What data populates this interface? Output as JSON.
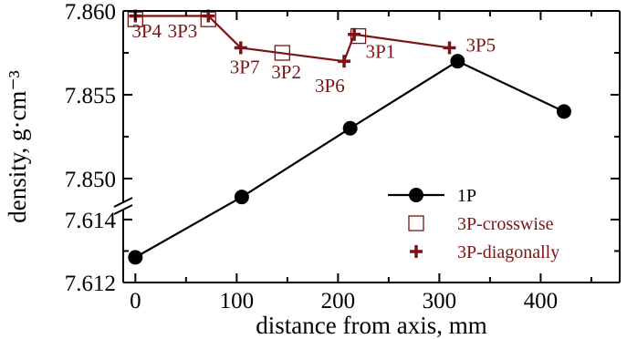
{
  "chart_data": {
    "type": "scatter",
    "title": "",
    "xlabel": "distance from axis, mm",
    "ylabel": "density, g·cm⁻³",
    "xlim": [
      -12,
      478
    ],
    "x_ticks": [
      "0",
      "100",
      "200",
      "300",
      "400"
    ],
    "x_tick_values": [
      0,
      100,
      200,
      300,
      400
    ],
    "y_axis_break": true,
    "y_upper_range": [
      7.8488,
      7.86
    ],
    "y_upper_ticks": [
      "7.860",
      "7.855",
      "7.850"
    ],
    "y_upper_tick_values": [
      7.86,
      7.855,
      7.85
    ],
    "y_lower_range": [
      7.612,
      7.6142
    ],
    "y_lower_ticks": [
      "7.614",
      "7.612"
    ],
    "y_lower_tick_values": [
      7.614,
      7.612
    ],
    "grid": false,
    "legend_position": "bottom-right",
    "series": [
      {
        "name": "1P",
        "marker": "filled-circle",
        "connected": true,
        "color": "#000000",
        "points": [
          {
            "x": 0,
            "y": 7.6128,
            "panel": "lower"
          },
          {
            "x": 105,
            "y": 7.8489,
            "panel": "upper"
          },
          {
            "x": 212,
            "y": 7.853,
            "panel": "upper"
          },
          {
            "x": 318,
            "y": 7.857,
            "panel": "upper"
          },
          {
            "x": 423,
            "y": 7.854,
            "panel": "upper"
          }
        ]
      },
      {
        "name": "3P-crosswise",
        "marker": "open-square",
        "connected": false,
        "color": "#7b1414",
        "points": [
          {
            "x": 0,
            "y": 7.8595,
            "label": "3P4"
          },
          {
            "x": 72,
            "y": 7.8595,
            "label": "3P3"
          },
          {
            "x": 145,
            "y": 7.8575,
            "label": "3P2"
          },
          {
            "x": 220,
            "y": 7.8585,
            "label": "3P1"
          }
        ]
      },
      {
        "name": "3P-diagonally",
        "marker": "plus",
        "connected": true,
        "color": "#7b1414",
        "points": [
          {
            "x": 0,
            "y": 7.8597,
            "label": ""
          },
          {
            "x": 72,
            "y": 7.8597,
            "label": ""
          },
          {
            "x": 104,
            "y": 7.8578,
            "label": "3P7"
          },
          {
            "x": 206,
            "y": 7.857,
            "label": "3P6"
          },
          {
            "x": 216,
            "y": 7.8586,
            "label": ""
          },
          {
            "x": 310,
            "y": 7.8578,
            "label": "3P5"
          }
        ]
      }
    ]
  }
}
